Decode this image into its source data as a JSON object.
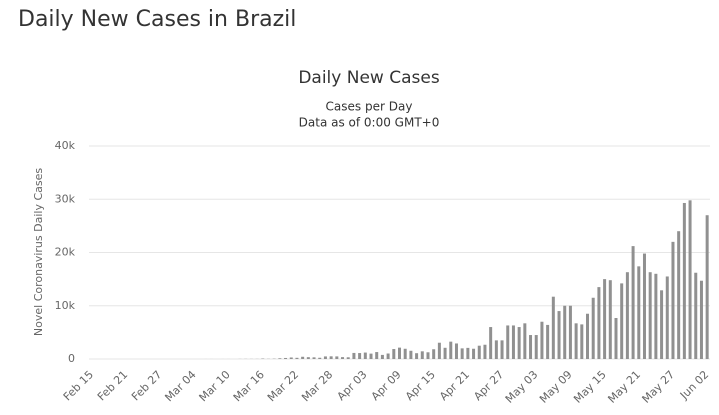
{
  "page_title": "Daily New Cases in Brazil",
  "chart_data": {
    "type": "bar",
    "title": "Daily New Cases",
    "subtitle": [
      "Cases per Day",
      "Data as of 0:00 GMT+0"
    ],
    "ylabel": "Novel Coronavirus Daily Cases",
    "color": "#909090",
    "grid": true,
    "ylim": [
      0,
      40000
    ],
    "yticks": [
      0,
      {
        "value": 10000,
        "label": "10k"
      },
      {
        "value": 20000,
        "label": "20k"
      },
      {
        "value": 30000,
        "label": "30k"
      },
      {
        "value": 40000,
        "label": "40k"
      }
    ],
    "categories": [
      "Feb 15",
      null,
      null,
      null,
      null,
      null,
      "Feb 21",
      null,
      null,
      null,
      null,
      null,
      "Feb 27",
      null,
      null,
      null,
      null,
      null,
      "Mar 04",
      null,
      null,
      null,
      null,
      null,
      "Mar 10",
      null,
      null,
      null,
      null,
      null,
      "Mar 16",
      null,
      null,
      null,
      null,
      null,
      "Mar 22",
      null,
      null,
      null,
      null,
      null,
      "Mar 28",
      null,
      null,
      null,
      null,
      null,
      "Apr 03",
      null,
      null,
      null,
      null,
      null,
      "Apr 09",
      null,
      null,
      null,
      null,
      null,
      "Apr 15",
      null,
      null,
      null,
      null,
      null,
      "Apr 21",
      null,
      null,
      null,
      null,
      null,
      "Apr 27",
      null,
      null,
      null,
      null,
      null,
      "May 03",
      null,
      null,
      null,
      null,
      null,
      "May 09",
      null,
      null,
      null,
      null,
      null,
      "May 15",
      null,
      null,
      null,
      null,
      null,
      "May 21",
      null,
      null,
      null,
      null,
      null,
      "May 27",
      null,
      null,
      null,
      null,
      null,
      "Jun 02"
    ],
    "values": [
      0,
      0,
      0,
      0,
      0,
      0,
      0,
      0,
      0,
      0,
      0,
      1,
      0,
      0,
      1,
      0,
      0,
      0,
      0,
      1,
      5,
      5,
      0,
      6,
      6,
      0,
      18,
      25,
      21,
      23,
      79,
      34,
      57,
      137,
      193,
      283,
      224,
      418,
      345,
      310,
      232,
      482,
      502,
      487,
      352,
      323,
      1138,
      1119,
      1208,
      1012,
      1304,
      770,
      1031,
      1873,
      2136,
      1922,
      1546,
      1089,
      1442,
      1261,
      1832,
      3058,
      2105,
      3257,
      2917,
      1996,
      2089,
      1927,
      2498,
      2678,
      6000,
      3500,
      3500,
      6300,
      6300,
      6000,
      6700,
      4500,
      4500,
      7000,
      6400,
      11700,
      9000,
      10000,
      10000,
      6700,
      6500,
      8500,
      11500,
      13500,
      15000,
      14800,
      7700,
      14200,
      16300,
      21200,
      17400,
      19800,
      16300,
      16000,
      12900,
      15500,
      22000,
      24000,
      29300,
      29800,
      16200,
      14700,
      27000
    ]
  }
}
